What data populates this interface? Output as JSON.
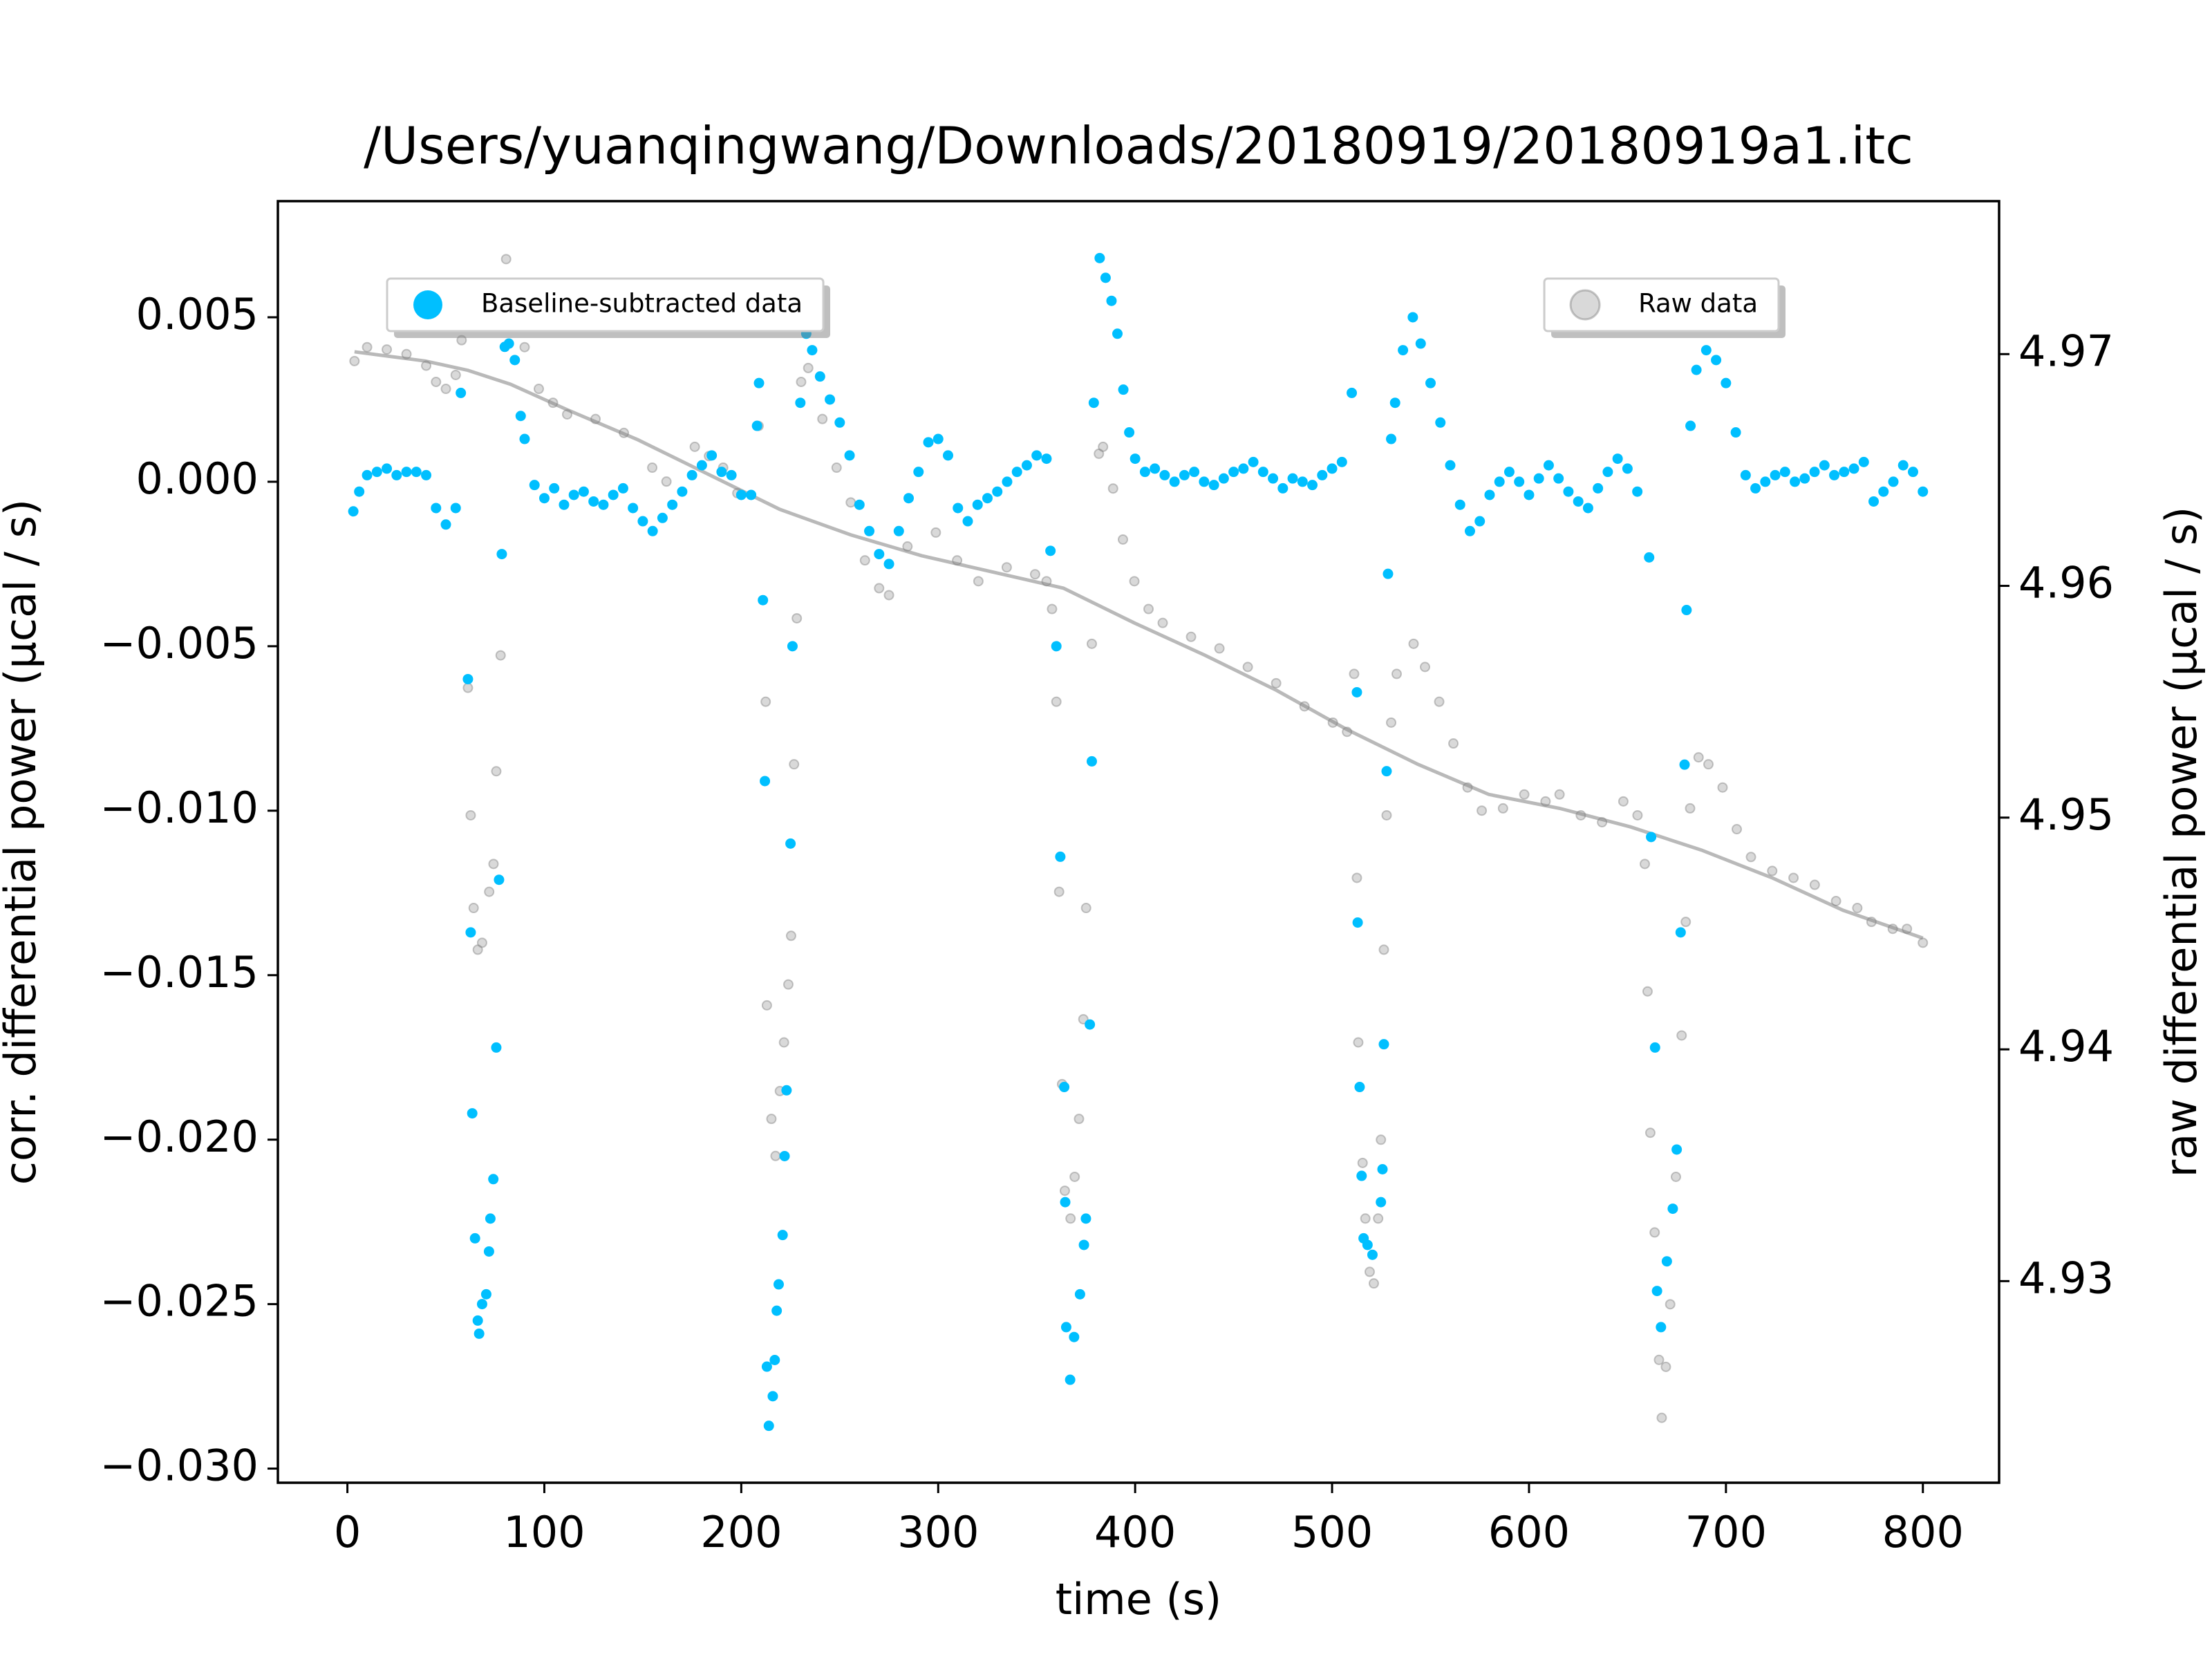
{
  "chart_data": {
    "type": "scatter",
    "title": "/Users/yuanqingwang/Downloads/20180919/20180919a1.itc",
    "x_label": "time (s)",
    "y_label": "corr. differential power (μcal / s)",
    "y2_label": "raw differential power (μcal / s)",
    "xlim": [
      -35.3,
      838.7
    ],
    "ylim": [
      -0.03043,
      0.00853
    ],
    "y2lim": [
      4.9213,
      4.9766
    ],
    "xticks": [
      0,
      100,
      200,
      300,
      400,
      500,
      600,
      700,
      800
    ],
    "yticks": [
      {
        "value": 0.005,
        "label": "0.005"
      },
      {
        "value": 0,
        "label": "0.000"
      },
      {
        "value": -0.005,
        "label": "−0.005"
      },
      {
        "value": -0.01,
        "label": "−0.010"
      },
      {
        "value": -0.015,
        "label": "−0.015"
      },
      {
        "value": -0.02,
        "label": "−0.020"
      },
      {
        "value": -0.025,
        "label": "−0.025"
      },
      {
        "value": -0.03,
        "label": "−0.030"
      }
    ],
    "y2ticks": [
      4.93,
      4.94,
      4.95,
      4.96,
      4.97
    ],
    "series": [
      {
        "name": "Baseline-subtracted data",
        "color": "#00bfff",
        "legend": "upper left",
        "x": [
          3,
          6,
          10,
          15,
          20,
          25,
          30,
          35,
          40,
          45,
          50,
          55,
          57.6,
          61.2,
          62.6,
          63.4,
          64.8,
          66.2,
          66.9,
          68.4,
          70.5,
          71.9,
          72.6,
          74.1,
          75.6,
          77,
          78.4,
          79.9,
          82,
          85,
          88,
          90,
          95,
          100,
          105,
          110,
          115,
          120,
          125,
          130,
          135,
          140,
          145,
          150,
          155,
          160,
          165,
          170,
          175,
          180,
          185,
          190,
          195,
          200,
          205,
          208,
          209,
          211,
          212,
          213,
          214,
          216,
          217,
          218,
          219,
          221,
          222,
          223,
          225,
          226,
          230,
          233,
          236,
          240,
          245,
          250,
          255,
          260,
          265,
          270,
          275,
          280,
          285,
          290,
          295,
          300,
          305,
          310,
          315,
          320,
          325,
          330,
          335,
          340,
          345,
          350,
          355,
          357,
          360,
          362,
          364,
          364.5,
          365,
          367,
          369,
          372,
          374,
          375,
          377,
          378,
          379,
          382,
          385,
          388,
          391,
          394,
          397,
          400,
          405,
          410,
          415,
          420,
          425,
          430,
          435,
          440,
          445,
          450,
          455,
          460,
          465,
          470,
          475,
          480,
          485,
          490,
          495,
          500,
          505,
          510,
          512.6,
          513,
          514,
          515,
          516,
          518,
          520.5,
          524.8,
          525.6,
          526.3,
          527.7,
          528.4,
          530,
          532,
          536,
          541,
          545,
          550,
          555,
          560,
          565,
          570,
          575,
          580,
          585,
          590,
          595,
          600,
          605,
          610,
          615,
          620,
          625,
          630,
          635,
          640,
          645,
          650,
          655,
          661,
          662,
          664,
          665,
          667,
          670,
          673,
          675,
          677,
          679,
          680,
          682,
          685,
          690,
          695,
          700,
          705,
          710,
          715,
          720,
          725,
          730,
          735,
          740,
          745,
          750,
          755,
          760,
          765,
          770,
          775,
          780,
          785,
          790,
          795,
          800
        ],
        "values": [
          -0.0009,
          -0.0003,
          0.0002,
          0.0003,
          0.0004,
          0.0002,
          0.0003,
          0.0003,
          0.0002,
          -0.0008,
          -0.0013,
          -0.0008,
          0.0027,
          -0.006,
          -0.0137,
          -0.0192,
          -0.023,
          -0.0255,
          -0.0259,
          -0.025,
          -0.0247,
          -0.0234,
          -0.0224,
          -0.0212,
          -0.0172,
          -0.0121,
          -0.0022,
          0.0041,
          0.0042,
          0.0037,
          0.002,
          0.0013,
          -0.0001,
          -0.0005,
          -0.0002,
          -0.0007,
          -0.0004,
          -0.0003,
          -0.0006,
          -0.0007,
          -0.0004,
          -0.0002,
          -0.0008,
          -0.0012,
          -0.0015,
          -0.0011,
          -0.0007,
          -0.0003,
          0.0002,
          0.0005,
          0.0008,
          0.0003,
          0.0002,
          -0.0004,
          -0.0004,
          0.0017,
          0.003,
          -0.0036,
          -0.0091,
          -0.0269,
          -0.0287,
          -0.0278,
          -0.0267,
          -0.0252,
          -0.0244,
          -0.0229,
          -0.0205,
          -0.0185,
          -0.011,
          -0.005,
          0.0024,
          0.0045,
          0.004,
          0.0032,
          0.0025,
          0.0018,
          0.0008,
          -0.0007,
          -0.0015,
          -0.0022,
          -0.0025,
          -0.0015,
          -0.0005,
          0.0003,
          0.0012,
          0.0013,
          0.0008,
          -0.0008,
          -0.0012,
          -0.0007,
          -0.0005,
          -0.0003,
          0,
          0.0003,
          0.0005,
          0.0008,
          0.0007,
          -0.0021,
          -0.005,
          -0.0114,
          -0.0184,
          -0.0219,
          -0.0257,
          -0.0273,
          -0.026,
          -0.0247,
          -0.0232,
          -0.0224,
          -0.0165,
          -0.0085,
          0.0024,
          0.0068,
          0.0062,
          0.0055,
          0.0045,
          0.0028,
          0.0015,
          0.0007,
          0.0003,
          0.0004,
          0.0002,
          0,
          0.0002,
          0.0003,
          0,
          -0.0001,
          0.0001,
          0.0003,
          0.0004,
          0.0006,
          0.0003,
          0.0001,
          -0.0002,
          0.0001,
          0,
          -0.0001,
          0.0002,
          0.0004,
          0.0006,
          0.0027,
          -0.0064,
          -0.0134,
          -0.0184,
          -0.0211,
          -0.023,
          -0.0232,
          -0.0235,
          -0.0219,
          -0.0209,
          -0.0171,
          -0.0088,
          -0.0028,
          0.0013,
          0.0024,
          0.004,
          0.005,
          0.0042,
          0.003,
          0.0018,
          0.0005,
          -0.0007,
          -0.0015,
          -0.0012,
          -0.0004,
          0,
          0.0003,
          0,
          -0.0004,
          0.0001,
          0.0005,
          0.0001,
          -0.0003,
          -0.0006,
          -0.0008,
          -0.0002,
          0.0003,
          0.0007,
          0.0004,
          -0.0003,
          -0.0023,
          -0.0108,
          -0.0172,
          -0.0246,
          -0.0257,
          -0.0237,
          -0.0221,
          -0.0203,
          -0.0137,
          -0.0086,
          -0.0039,
          0.0017,
          0.0034,
          0.004,
          0.0037,
          0.003,
          0.0015,
          0.0002,
          -0.0002,
          0,
          0.0002,
          0.0003,
          0,
          0.0001,
          0.0003,
          0.0005,
          0.0002,
          0.0003,
          0.0004,
          0.0006,
          -0.0006,
          -0.0003,
          0,
          0.0005,
          0.0003,
          -0.0003
        ]
      },
      {
        "name": "Raw data",
        "color": "#808080",
        "axis": "y2",
        "legend": "upper right",
        "x": [
          3.6,
          10,
          20,
          30,
          40,
          45,
          50,
          55,
          58,
          61.2,
          62.6,
          64.1,
          66.2,
          68.4,
          72,
          74.2,
          75.6,
          77.8,
          79.9,
          80.6,
          82.8,
          90,
          97.2,
          104.4,
          111.6,
          126,
          140.4,
          154.8,
          162,
          176.4,
          183.6,
          190.8,
          198,
          208.8,
          212.4,
          213,
          215.3,
          217.4,
          219.6,
          221.7,
          223.9,
          225.3,
          226.8,
          228.2,
          230.4,
          234,
          241.2,
          248.4,
          255.6,
          262.8,
          270,
          275,
          284.4,
          298.8,
          309.6,
          320.4,
          334.8,
          349.2,
          355,
          357.8,
          360,
          361.4,
          362.9,
          364.3,
          367.2,
          369.3,
          371.5,
          373.7,
          375.1,
          378,
          381.6,
          383.7,
          388.8,
          393.8,
          399.6,
          406.8,
          414,
          428.4,
          442.8,
          457.2,
          471.6,
          486,
          500.4,
          507.6,
          511.2,
          512.6,
          513.3,
          515.5,
          516.9,
          519.1,
          521.2,
          523.4,
          524.8,
          526.3,
          527.7,
          530,
          532.8,
          541.4,
          547.2,
          554.4,
          561.6,
          568.8,
          576,
          586.8,
          597.6,
          608.4,
          615.5,
          626.3,
          637.1,
          647.9,
          655.1,
          658.8,
          660.2,
          661.6,
          663.8,
          666,
          667.4,
          669.5,
          671.7,
          674.6,
          677.5,
          679.6,
          681.8,
          686.1,
          691.1,
          698.3,
          705.5,
          712.7,
          723.5,
          734.3,
          745.1,
          755.9,
          766.7,
          773.9,
          784.7,
          791.9,
          800
        ],
        "values": [
          4.9697,
          4.9703,
          4.9702,
          4.97,
          4.9695,
          4.9688,
          4.9685,
          4.9691,
          4.9706,
          4.9556,
          4.9501,
          4.9461,
          4.9443,
          4.9446,
          4.9468,
          4.948,
          4.952,
          4.957,
          4.9724,
          4.9741,
          4.9715,
          4.9703,
          4.9685,
          4.9679,
          4.9674,
          4.9672,
          4.9666,
          4.9651,
          4.9645,
          4.966,
          4.9656,
          4.9651,
          4.964,
          4.9669,
          4.955,
          4.9419,
          4.937,
          4.9354,
          4.9382,
          4.9403,
          4.9428,
          4.9449,
          4.9523,
          4.9586,
          4.9688,
          4.9694,
          4.9672,
          4.9651,
          4.9636,
          4.9611,
          4.9599,
          4.9596,
          4.9617,
          4.9623,
          4.9611,
          4.9602,
          4.9608,
          4.9605,
          4.9602,
          4.959,
          4.955,
          4.9468,
          4.9385,
          4.9339,
          4.9327,
          4.9345,
          4.937,
          4.9413,
          4.9461,
          4.9575,
          4.9657,
          4.966,
          4.9642,
          4.962,
          4.9602,
          4.959,
          4.9584,
          4.9578,
          4.9573,
          4.9565,
          4.9558,
          4.9548,
          4.9541,
          4.9537,
          4.9562,
          4.9474,
          4.9403,
          4.9351,
          4.9327,
          4.9304,
          4.9299,
          4.9327,
          4.9361,
          4.9443,
          4.9501,
          4.9541,
          4.9562,
          4.9575,
          4.9565,
          4.955,
          4.9532,
          4.9513,
          4.9503,
          4.9504,
          4.951,
          4.9507,
          4.951,
          4.9501,
          4.9498,
          4.9507,
          4.9501,
          4.948,
          4.9425,
          4.9364,
          4.9321,
          4.9266,
          4.9241,
          4.9263,
          4.929,
          4.9345,
          4.9406,
          4.9455,
          4.9504,
          4.9526,
          4.9523,
          4.9513,
          4.9495,
          4.9483,
          4.9477,
          4.9474,
          4.9471,
          4.9464,
          4.9461,
          4.9455,
          4.9452,
          4.9452,
          4.9446
        ]
      },
      {
        "type": "line",
        "color": "#808080",
        "axis": "y2",
        "x": [
          3.6,
          39.6,
          61.2,
          82.8,
          111.6,
          147.6,
          183.6,
          219.6,
          255.6,
          291.6,
          327.6,
          363.6,
          399.6,
          435.6,
          471.6,
          507.6,
          543.6,
          579.6,
          615.5,
          651.5,
          687.5,
          723.5,
          759.5,
          800
        ],
        "values": [
          4.9701,
          4.9697,
          4.9693,
          4.9687,
          4.9676,
          4.9663,
          4.9648,
          4.9633,
          4.9622,
          4.9613,
          4.9606,
          4.9599,
          4.9584,
          4.957,
          4.9555,
          4.9538,
          4.9523,
          4.951,
          4.9504,
          4.9496,
          4.9486,
          4.9474,
          4.946,
          4.9448
        ]
      }
    ]
  }
}
